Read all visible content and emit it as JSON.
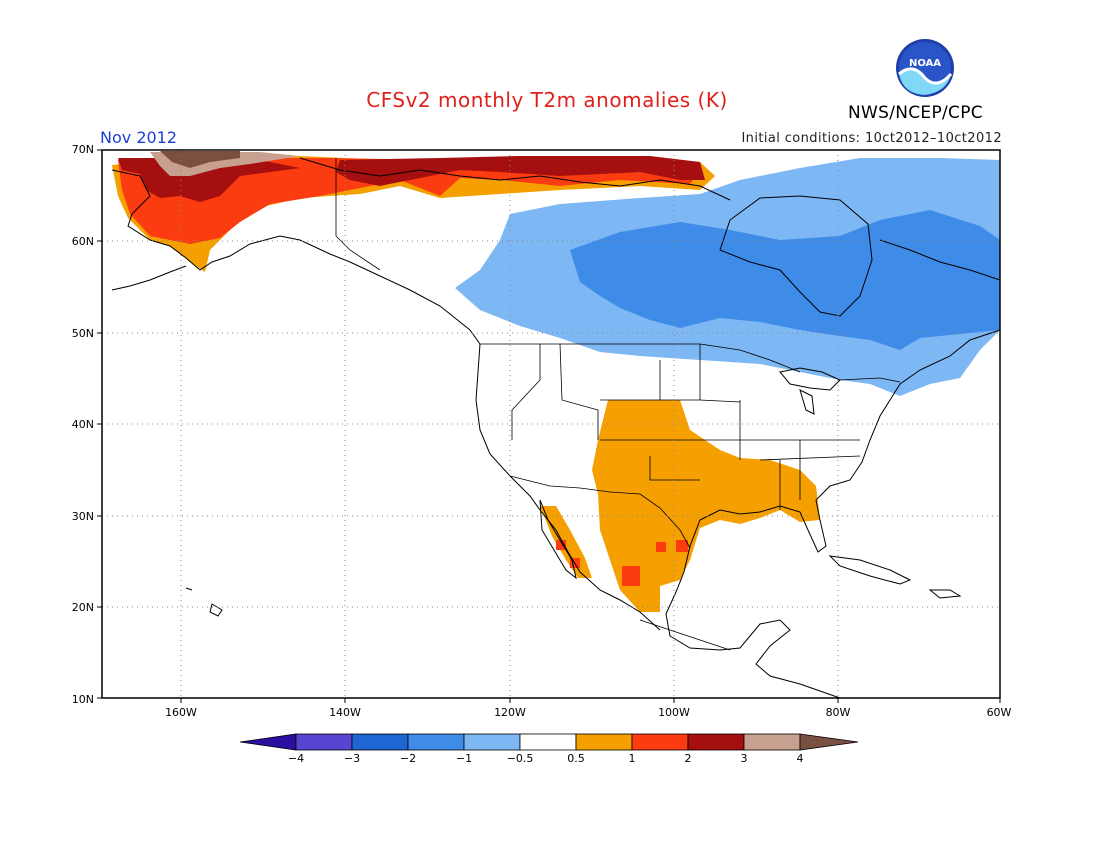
{
  "title": "CFSv2 monthly T2m anomalies (K)",
  "agency": "NWS/NCEP/CPC",
  "logo_text": "NOAA",
  "month": "Nov 2012",
  "initial_conditions": "Initial conditions: 10ct2012–10ct2012",
  "lat_labels": [
    "70N",
    "60N",
    "50N",
    "40N",
    "30N",
    "20N",
    "10N"
  ],
  "lon_labels": [
    "160W",
    "140W",
    "120W",
    "100W",
    "80W",
    "60W"
  ],
  "colorbar": {
    "labels": [
      "−4",
      "−3",
      "−2",
      "−1",
      "−0.5",
      "0.5",
      "1",
      "2",
      "3",
      "4"
    ],
    "colors": [
      "#2a0fa0",
      "#5545d0",
      "#1f66d4",
      "#3e8be8",
      "#7db7f4",
      "#ffffff",
      "#f5a000",
      "#fa3c10",
      "#a50f0f",
      "#c8a090",
      "#7a5040"
    ]
  },
  "colors": {
    "title": "#e0201c",
    "month": "#1c3fd6",
    "anomaly_light_blue": "#7db7f4",
    "anomaly_blue": "#3e8be8",
    "anomaly_orange": "#f5a000",
    "anomaly_red_orange": "#fa3c10",
    "anomaly_dark_red": "#a50f0f",
    "anomaly_tan": "#c8a090",
    "anomaly_brown": "#7a5040"
  }
}
